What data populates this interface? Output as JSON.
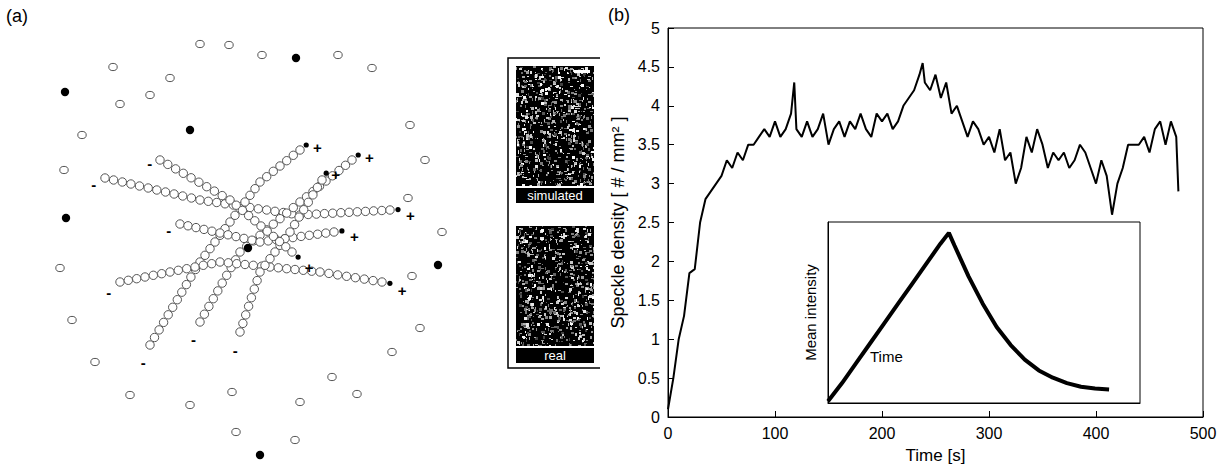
{
  "panel_a": {
    "label": "(a)",
    "plus": "+",
    "minus": "-",
    "images": [
      "simulated",
      "real"
    ]
  },
  "panel_b": {
    "label": "(b)"
  },
  "chart_data": [
    {
      "type": "line",
      "x_label": "Time [s]",
      "y_label": "Speckle density [ # / mm² ]",
      "x": [
        0,
        5,
        10,
        15,
        20,
        25,
        30,
        35,
        40,
        45,
        50,
        55,
        60,
        65,
        70,
        75,
        80,
        85,
        90,
        95,
        100,
        105,
        110,
        115,
        118,
        120,
        125,
        130,
        135,
        140,
        145,
        150,
        155,
        160,
        165,
        170,
        175,
        180,
        185,
        190,
        195,
        200,
        205,
        210,
        215,
        220,
        225,
        230,
        235,
        238,
        240,
        245,
        250,
        255,
        260,
        265,
        270,
        275,
        280,
        285,
        290,
        295,
        300,
        305,
        310,
        315,
        320,
        325,
        330,
        335,
        340,
        345,
        350,
        355,
        360,
        365,
        370,
        375,
        380,
        385,
        390,
        395,
        400,
        405,
        410,
        415,
        420,
        425,
        430,
        435,
        440,
        445,
        450,
        455,
        460,
        465,
        470,
        475,
        477
      ],
      "values": [
        0.1,
        0.5,
        1.0,
        1.3,
        1.85,
        1.9,
        2.5,
        2.8,
        2.9,
        3.0,
        3.1,
        3.3,
        3.2,
        3.4,
        3.3,
        3.5,
        3.5,
        3.6,
        3.7,
        3.6,
        3.8,
        3.6,
        3.7,
        3.9,
        4.3,
        3.7,
        3.6,
        3.8,
        3.6,
        3.7,
        3.9,
        3.5,
        3.7,
        3.8,
        3.6,
        3.8,
        3.7,
        3.9,
        3.7,
        3.6,
        3.9,
        3.8,
        3.9,
        3.7,
        3.8,
        4.0,
        4.1,
        4.2,
        4.4,
        4.55,
        4.3,
        4.2,
        4.4,
        4.1,
        4.3,
        3.9,
        4.0,
        3.8,
        3.6,
        3.8,
        3.7,
        3.5,
        3.6,
        3.4,
        3.7,
        3.3,
        3.4,
        3.0,
        3.2,
        3.6,
        3.4,
        3.7,
        3.5,
        3.2,
        3.4,
        3.3,
        3.4,
        3.2,
        3.3,
        3.5,
        3.4,
        3.2,
        3.0,
        3.3,
        3.1,
        2.6,
        3.0,
        3.2,
        3.5,
        3.5,
        3.5,
        3.6,
        3.4,
        3.7,
        3.8,
        3.5,
        3.8,
        3.6,
        2.9
      ],
      "color": "#000000",
      "xlim": [
        0,
        500
      ],
      "xticks": [
        0,
        100,
        200,
        300,
        400,
        500
      ],
      "ylim": [
        0,
        5
      ],
      "yticks": [
        0,
        0.5,
        1,
        1.5,
        2,
        2.5,
        3,
        3.5,
        4,
        4.5,
        5
      ],
      "grid": false
    },
    {
      "type": "line",
      "x_label": "Time",
      "y_label": "Mean intensity",
      "x": [
        0,
        5,
        10,
        15,
        20,
        25,
        30,
        35,
        40,
        43,
        45,
        50,
        55,
        60,
        65,
        70,
        75,
        80,
        85,
        90,
        95,
        100
      ],
      "values": [
        0.01,
        0.11,
        0.22,
        0.33,
        0.44,
        0.55,
        0.66,
        0.77,
        0.88,
        0.94,
        0.87,
        0.7,
        0.55,
        0.42,
        0.32,
        0.24,
        0.18,
        0.14,
        0.11,
        0.09,
        0.08,
        0.075
      ],
      "color": "#000000",
      "xlim": [
        0,
        111
      ],
      "ylim": [
        0,
        1
      ],
      "grid": false,
      "tick_labels": false
    }
  ]
}
